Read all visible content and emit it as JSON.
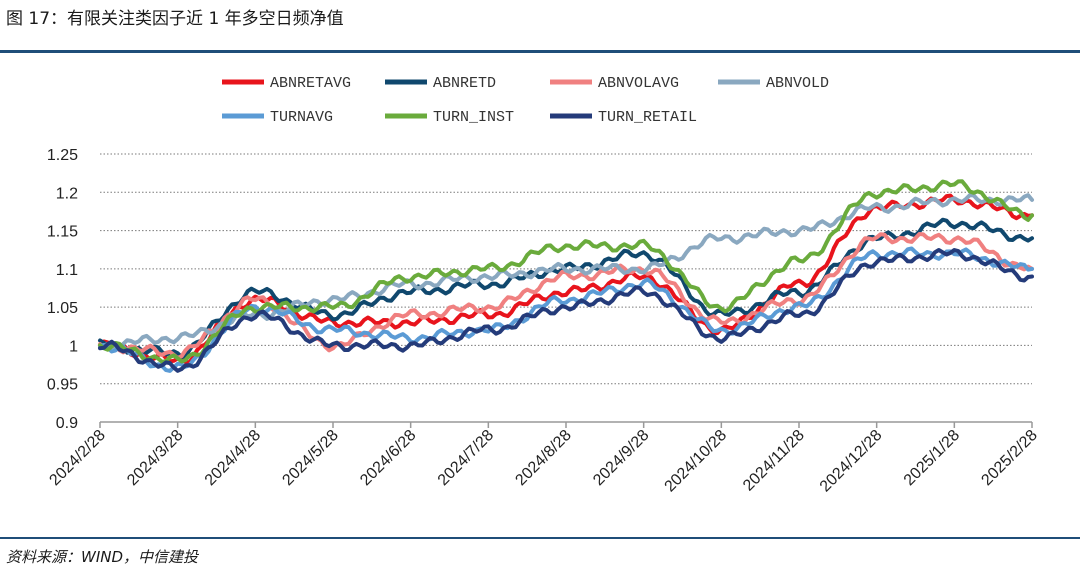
{
  "header": {
    "title": "图 17：有限关注类因子近 1 年多空日频净值"
  },
  "footer": {
    "source": "资料来源：WIND，中信建投"
  },
  "chart_data": {
    "type": "line",
    "title": "有限关注类因子近 1 年多空日频净值",
    "xlabel": "",
    "ylabel": "",
    "ylim": [
      0.9,
      1.25
    ],
    "yticks": [
      "0.9",
      "0.95",
      "1",
      "1.05",
      "1.1",
      "1.15",
      "1.2",
      "1.25"
    ],
    "x": [
      "2024/2/28",
      "2024/3/28",
      "2024/4/28",
      "2024/5/28",
      "2024/6/28",
      "2024/7/28",
      "2024/8/28",
      "2024/9/28",
      "2024/10/28",
      "2024/11/28",
      "2024/12/28",
      "2025/1/28",
      "2025/2/28"
    ],
    "legend_position": "top",
    "grid": "horizontal-dotted",
    "series": [
      {
        "name": "ABNRETAVG",
        "color": "#e8141c",
        "values": [
          1.0,
          0.98,
          1.06,
          1.03,
          1.03,
          1.04,
          1.07,
          1.09,
          1.02,
          1.08,
          1.18,
          1.19,
          1.17
        ]
      },
      {
        "name": "ABNRETD",
        "color": "#10486e",
        "values": [
          1.0,
          0.99,
          1.07,
          1.04,
          1.07,
          1.08,
          1.1,
          1.12,
          1.04,
          1.07,
          1.14,
          1.16,
          1.14
        ]
      },
      {
        "name": "ABNVOLAVG",
        "color": "#f08080",
        "values": [
          1.0,
          0.99,
          1.06,
          1.0,
          1.04,
          1.05,
          1.09,
          1.1,
          1.03,
          1.06,
          1.14,
          1.14,
          1.1
        ]
      },
      {
        "name": "ABNVOLD",
        "color": "#8aa8c0",
        "values": [
          1.0,
          1.01,
          1.04,
          1.06,
          1.08,
          1.09,
          1.1,
          1.1,
          1.14,
          1.15,
          1.18,
          1.19,
          1.19
        ]
      },
      {
        "name": "TURNAVG",
        "color": "#5b9bd5",
        "values": [
          1.0,
          0.97,
          1.05,
          1.02,
          1.01,
          1.02,
          1.06,
          1.08,
          1.02,
          1.05,
          1.12,
          1.12,
          1.1
        ]
      },
      {
        "name": "TURN_INST",
        "color": "#6aab3c",
        "values": [
          1.0,
          0.98,
          1.05,
          1.05,
          1.09,
          1.1,
          1.13,
          1.13,
          1.05,
          1.11,
          1.2,
          1.21,
          1.17
        ]
      },
      {
        "name": "TURN_RETAIL",
        "color": "#243b7a",
        "values": [
          1.0,
          0.97,
          1.04,
          1.0,
          1.0,
          1.02,
          1.05,
          1.07,
          1.01,
          1.04,
          1.11,
          1.12,
          1.09
        ]
      }
    ]
  }
}
